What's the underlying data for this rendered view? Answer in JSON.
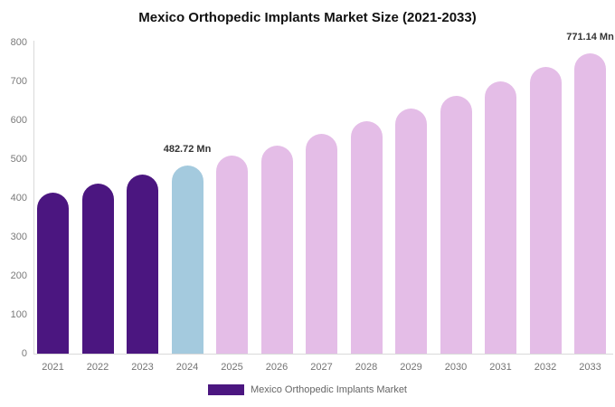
{
  "title": "Mexico Orthopedic Implants Market Size (2021-2033)",
  "legend": {
    "label": "Mexico Orthopedic Implants Market",
    "swatch_color": "#4b1680"
  },
  "colors": {
    "historical": "#4b1680",
    "current": "#a4cade",
    "forecast": "#e4bde7",
    "axis_line": "#d9d9d9",
    "y_tick_text": "#7a7a7a",
    "x_tick_text": "#737373",
    "annotation_text": "#333333",
    "legend_text": "#666666",
    "title_text": "#111111",
    "background": "#ffffff"
  },
  "chart_data": {
    "type": "bar",
    "title": "Mexico Orthopedic Implants Market Size (2021-2033)",
    "categories": [
      "2021",
      "2022",
      "2023",
      "2024",
      "2025",
      "2026",
      "2027",
      "2028",
      "2029",
      "2030",
      "2031",
      "2032",
      "2033"
    ],
    "values": [
      415,
      437,
      460,
      482.72,
      510,
      536,
      566,
      598,
      630,
      663,
      699,
      737,
      771.14
    ],
    "bar_roles": [
      "historical",
      "historical",
      "historical",
      "current",
      "forecast",
      "forecast",
      "forecast",
      "forecast",
      "forecast",
      "forecast",
      "forecast",
      "forecast",
      "forecast"
    ],
    "annotations": [
      {
        "category": "2024",
        "text": "482.72 Mn"
      },
      {
        "category": "2033",
        "text": "771.14 Mn"
      }
    ],
    "xlabel": "",
    "ylabel": "",
    "ylim": [
      0,
      800
    ],
    "yticks": [
      0,
      100,
      200,
      300,
      400,
      500,
      600,
      700,
      800
    ],
    "grid": false,
    "legend_position": "bottom",
    "series_name": "Mexico Orthopedic Implants Market",
    "value_unit": "Mn"
  }
}
